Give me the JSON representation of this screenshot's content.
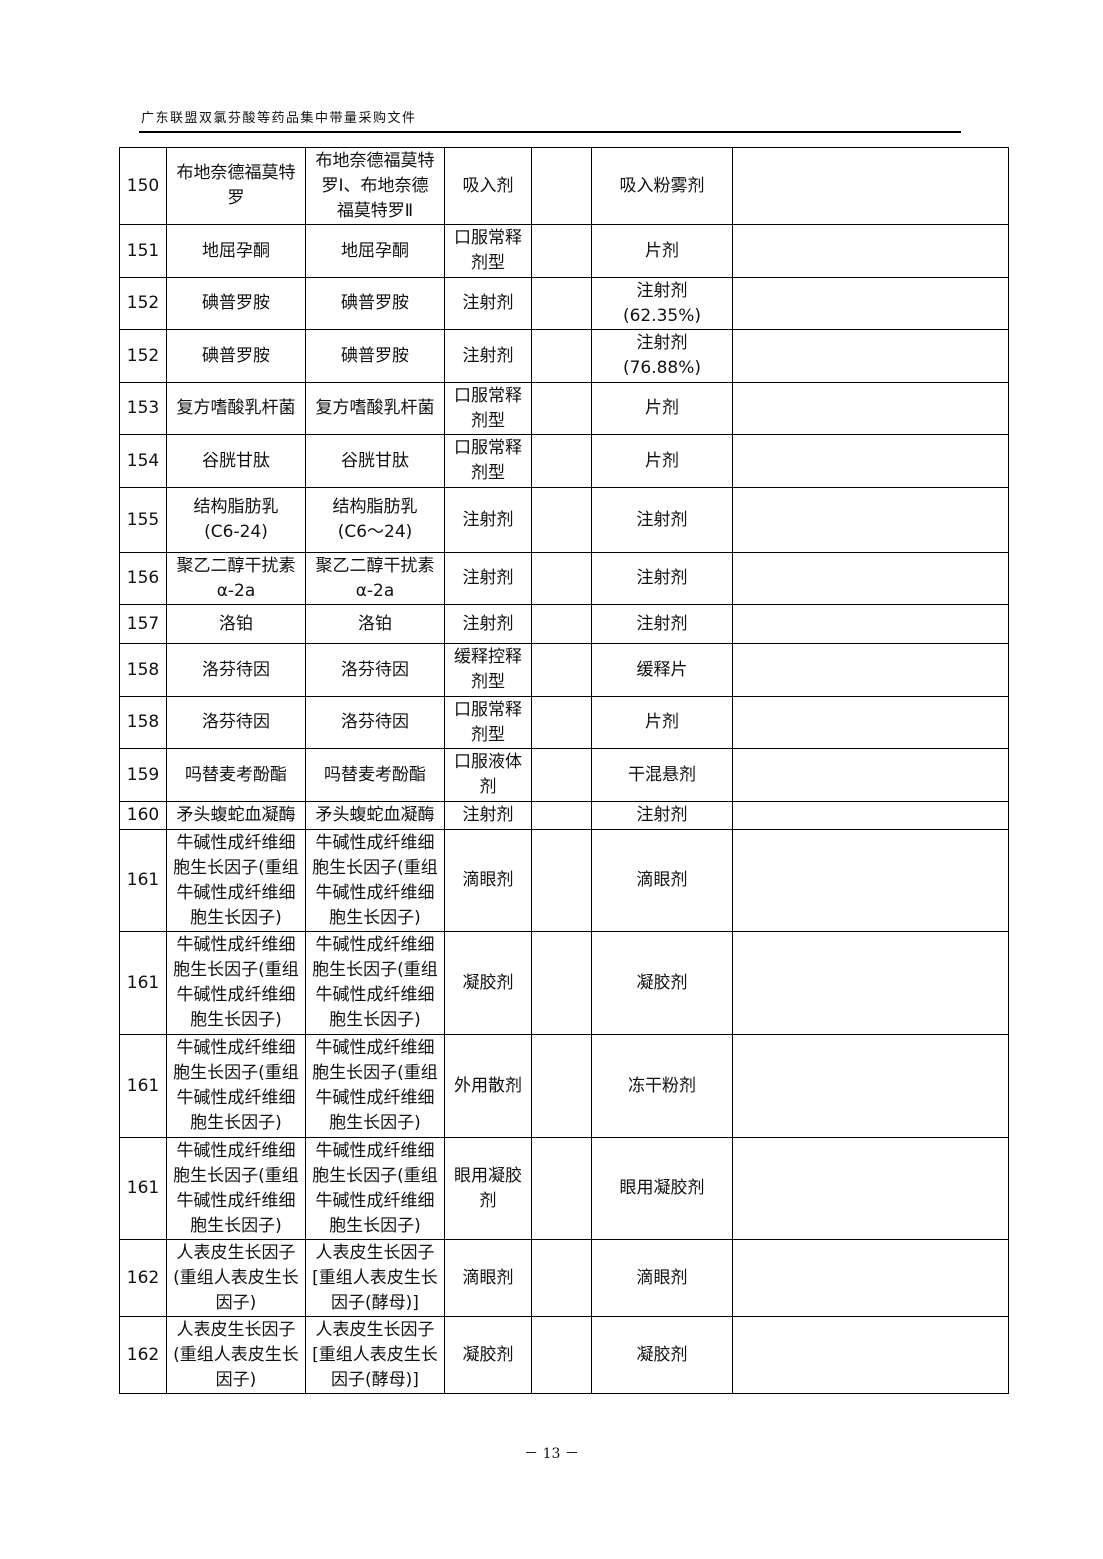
{
  "header": {
    "title": "广东联盟双氯芬酸等药品集中带量采购文件"
  },
  "footer": {
    "page": "－ 13 －"
  },
  "table": {
    "rows": [
      [
        "150",
        "布地奈德福莫特\n罗",
        "布地奈德福莫特\n罗Ⅰ、布地奈德\n福莫特罗Ⅱ",
        "吸入剂",
        "",
        "吸入粉雾剂",
        ""
      ],
      [
        "151",
        "地屈孕酮",
        "地屈孕酮",
        "口服常释\n剂型",
        "",
        "片剂",
        ""
      ],
      [
        "152",
        "碘普罗胺",
        "碘普罗胺",
        "注射剂",
        "",
        "注射剂\n(62.35%)",
        ""
      ],
      [
        "152",
        "碘普罗胺",
        "碘普罗胺",
        "注射剂",
        "",
        "注射剂\n(76.88%)",
        ""
      ],
      [
        "153",
        "复方嗜酸乳杆菌",
        "复方嗜酸乳杆菌",
        "口服常释\n剂型",
        "",
        "片剂",
        ""
      ],
      [
        "154",
        "谷胱甘肽",
        "谷胱甘肽",
        "口服常释\n剂型",
        "",
        "片剂",
        ""
      ],
      [
        "155",
        "结构脂肪乳\n(C6-24)",
        "结构脂肪乳\n(C6～24)",
        "注射剂",
        "",
        "注射剂",
        ""
      ],
      [
        "156",
        "聚乙二醇干扰素\nα-2a",
        "聚乙二醇干扰素\nα-2a",
        "注射剂",
        "",
        "注射剂",
        ""
      ],
      [
        "157",
        "洛铂",
        "洛铂",
        "注射剂",
        "",
        "注射剂",
        ""
      ],
      [
        "158",
        "洛芬待因",
        "洛芬待因",
        "缓释控释\n剂型",
        "",
        "缓释片",
        ""
      ],
      [
        "158",
        "洛芬待因",
        "洛芬待因",
        "口服常释\n剂型",
        "",
        "片剂",
        ""
      ],
      [
        "159",
        "吗替麦考酚酯",
        "吗替麦考酚酯",
        "口服液体\n剂",
        "",
        "干混悬剂",
        ""
      ],
      [
        "160",
        "矛头蝮蛇血凝酶",
        "矛头蝮蛇血凝酶",
        "注射剂",
        "",
        "注射剂",
        ""
      ],
      [
        "161",
        "牛碱性成纤维细\n胞生长因子(重组\n牛碱性成纤维细\n胞生长因子)",
        "牛碱性成纤维细\n胞生长因子(重组\n牛碱性成纤维细\n胞生长因子)",
        "滴眼剂",
        "",
        "滴眼剂",
        ""
      ],
      [
        "161",
        "牛碱性成纤维细\n胞生长因子(重组\n牛碱性成纤维细\n胞生长因子)",
        "牛碱性成纤维细\n胞生长因子(重组\n牛碱性成纤维细\n胞生长因子)",
        "凝胶剂",
        "",
        "凝胶剂",
        ""
      ],
      [
        "161",
        "牛碱性成纤维细\n胞生长因子(重组\n牛碱性成纤维细\n胞生长因子)",
        "牛碱性成纤维细\n胞生长因子(重组\n牛碱性成纤维细\n胞生长因子)",
        "外用散剂",
        "",
        "冻干粉剂",
        ""
      ],
      [
        "161",
        "牛碱性成纤维细\n胞生长因子(重组\n牛碱性成纤维细\n胞生长因子)",
        "牛碱性成纤维细\n胞生长因子(重组\n牛碱性成纤维细\n胞生长因子)",
        "眼用凝胶\n剂",
        "",
        "眼用凝胶剂",
        ""
      ],
      [
        "162",
        "人表皮生长因子\n(重组人表皮生长\n因子)",
        "人表皮生长因子\n[重组人表皮生长\n因子(酵母)]",
        "滴眼剂",
        "",
        "滴眼剂",
        ""
      ],
      [
        "162",
        "人表皮生长因子\n(重组人表皮生长\n因子)",
        "人表皮生长因子\n[重组人表皮生长\n因子(酵母)]",
        "凝胶剂",
        "",
        "凝胶剂",
        ""
      ]
    ]
  }
}
